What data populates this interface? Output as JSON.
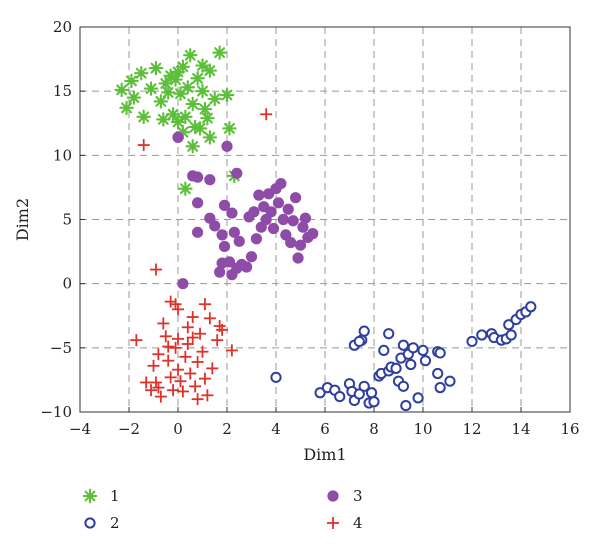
{
  "chart_data": {
    "type": "scatter",
    "xlabel": "Dim1",
    "ylabel": "Dim2",
    "xlim": [
      -4,
      16
    ],
    "ylim": [
      -10,
      20
    ],
    "xticks": [
      -4,
      -2,
      0,
      2,
      4,
      6,
      8,
      10,
      12,
      14,
      16
    ],
    "yticks": [
      -10,
      -5,
      0,
      5,
      10,
      15,
      20
    ],
    "grid": true,
    "legend_placement": "below",
    "series": [
      {
        "name": "1",
        "marker": "asterisk",
        "color": "#5cbf3a",
        "points": [
          [
            -2.3,
            15.1
          ],
          [
            -2.1,
            13.7
          ],
          [
            -1.8,
            14.5
          ],
          [
            -1.9,
            15.8
          ],
          [
            -1.5,
            16.4
          ],
          [
            -1.1,
            15.2
          ],
          [
            -0.9,
            16.8
          ],
          [
            -1.4,
            13.0
          ],
          [
            -0.7,
            14.2
          ],
          [
            -0.5,
            15.6
          ],
          [
            -0.3,
            16.2
          ],
          [
            -0.2,
            13.2
          ],
          [
            0.0,
            12.6
          ],
          [
            0.1,
            14.8
          ],
          [
            0.2,
            16.9
          ],
          [
            0.4,
            15.3
          ],
          [
            0.5,
            17.8
          ],
          [
            0.6,
            14.0
          ],
          [
            0.8,
            16.0
          ],
          [
            1.0,
            15.0
          ],
          [
            1.1,
            13.6
          ],
          [
            1.2,
            12.9
          ],
          [
            1.3,
            16.6
          ],
          [
            1.5,
            14.4
          ],
          [
            1.7,
            18.0
          ],
          [
            0.3,
            13.0
          ],
          [
            -0.1,
            15.9
          ],
          [
            0.9,
            12.1
          ],
          [
            1.0,
            17.0
          ],
          [
            0.2,
            11.8
          ],
          [
            0.7,
            12.2
          ],
          [
            2.0,
            14.7
          ],
          [
            2.1,
            12.1
          ],
          [
            0.6,
            10.7
          ],
          [
            1.3,
            11.4
          ],
          [
            -0.6,
            12.8
          ],
          [
            0.3,
            7.4
          ],
          [
            2.3,
            8.4
          ],
          [
            -0.4,
            14.9
          ],
          [
            0.0,
            16.5
          ]
        ]
      },
      {
        "name": "2",
        "marker": "open-circle",
        "color": "#2f3f9e",
        "points": [
          [
            4.0,
            -7.3
          ],
          [
            5.8,
            -8.5
          ],
          [
            6.1,
            -8.1
          ],
          [
            6.4,
            -8.3
          ],
          [
            6.6,
            -8.8
          ],
          [
            7.0,
            -7.8
          ],
          [
            7.1,
            -8.4
          ],
          [
            7.2,
            -9.1
          ],
          [
            7.4,
            -8.6
          ],
          [
            7.8,
            -9.3
          ],
          [
            8.0,
            -9.2
          ],
          [
            7.6,
            -8.0
          ],
          [
            7.9,
            -8.5
          ],
          [
            8.2,
            -7.2
          ],
          [
            8.3,
            -7.0
          ],
          [
            8.6,
            -6.8
          ],
          [
            8.7,
            -6.5
          ],
          [
            8.9,
            -6.6
          ],
          [
            9.0,
            -7.6
          ],
          [
            9.1,
            -5.8
          ],
          [
            9.2,
            -8.0
          ],
          [
            9.3,
            -9.5
          ],
          [
            9.4,
            -5.5
          ],
          [
            9.5,
            -6.3
          ],
          [
            9.6,
            -5.0
          ],
          [
            9.2,
            -4.8
          ],
          [
            8.4,
            -5.2
          ],
          [
            8.6,
            -3.9
          ],
          [
            7.5,
            -4.4
          ],
          [
            7.6,
            -3.7
          ],
          [
            7.2,
            -4.8
          ],
          [
            7.4,
            -4.5
          ],
          [
            10.0,
            -5.2
          ],
          [
            10.1,
            -6.0
          ],
          [
            9.8,
            -8.9
          ],
          [
            10.6,
            -5.3
          ],
          [
            10.7,
            -5.4
          ],
          [
            10.6,
            -7.0
          ],
          [
            10.7,
            -8.1
          ],
          [
            11.1,
            -7.6
          ],
          [
            12.0,
            -4.5
          ],
          [
            12.4,
            -4.0
          ],
          [
            12.8,
            -3.9
          ],
          [
            12.9,
            -4.2
          ],
          [
            13.2,
            -4.4
          ],
          [
            13.4,
            -4.3
          ],
          [
            13.6,
            -4.0
          ],
          [
            13.5,
            -3.2
          ],
          [
            13.8,
            -2.8
          ],
          [
            14.0,
            -2.4
          ],
          [
            14.2,
            -2.2
          ],
          [
            14.4,
            -1.8
          ]
        ]
      },
      {
        "name": "3",
        "marker": "filled-circle",
        "color": "#8e4ca8",
        "points": [
          [
            0.0,
            11.4
          ],
          [
            2.0,
            10.7
          ],
          [
            0.6,
            8.4
          ],
          [
            0.8,
            8.3
          ],
          [
            1.3,
            8.1
          ],
          [
            2.4,
            8.6
          ],
          [
            0.8,
            6.3
          ],
          [
            1.3,
            5.1
          ],
          [
            1.9,
            6.1
          ],
          [
            2.2,
            5.5
          ],
          [
            1.5,
            4.5
          ],
          [
            0.8,
            4.0
          ],
          [
            1.8,
            3.8
          ],
          [
            2.3,
            4.0
          ],
          [
            2.5,
            3.3
          ],
          [
            1.8,
            1.6
          ],
          [
            1.9,
            2.9
          ],
          [
            2.1,
            1.7
          ],
          [
            2.4,
            1.2
          ],
          [
            2.6,
            1.5
          ],
          [
            1.7,
            0.9
          ],
          [
            2.2,
            0.7
          ],
          [
            2.8,
            1.3
          ],
          [
            3.0,
            2.1
          ],
          [
            3.3,
            6.9
          ],
          [
            3.5,
            6.0
          ],
          [
            3.6,
            5.0
          ],
          [
            3.8,
            5.6
          ],
          [
            3.9,
            4.3
          ],
          [
            4.0,
            7.4
          ],
          [
            4.1,
            6.3
          ],
          [
            4.3,
            5.0
          ],
          [
            4.4,
            3.8
          ],
          [
            4.6,
            3.2
          ],
          [
            4.7,
            4.9
          ],
          [
            4.8,
            6.7
          ],
          [
            4.9,
            2.0
          ],
          [
            5.1,
            4.4
          ],
          [
            5.2,
            5.1
          ],
          [
            5.3,
            3.6
          ],
          [
            5.5,
            3.9
          ],
          [
            4.2,
            7.8
          ],
          [
            3.1,
            5.6
          ],
          [
            3.4,
            4.4
          ],
          [
            2.9,
            5.2
          ],
          [
            0.2,
            0.0
          ],
          [
            3.7,
            7.0
          ],
          [
            3.2,
            3.5
          ],
          [
            4.5,
            5.8
          ],
          [
            5.0,
            3.0
          ]
        ]
      },
      {
        "name": "4",
        "marker": "plus",
        "color": "#e0302a",
        "points": [
          [
            3.6,
            13.2
          ],
          [
            -1.4,
            10.8
          ],
          [
            -0.9,
            1.1
          ],
          [
            -1.7,
            -4.4
          ],
          [
            -1.3,
            -7.7
          ],
          [
            -1.0,
            -6.4
          ],
          [
            -0.9,
            -7.7
          ],
          [
            -0.8,
            -8.1
          ],
          [
            -0.7,
            -8.8
          ],
          [
            -0.8,
            -5.5
          ],
          [
            -0.6,
            -3.1
          ],
          [
            -0.5,
            -4.1
          ],
          [
            -0.4,
            -6.0
          ],
          [
            -0.3,
            -7.3
          ],
          [
            -0.2,
            -8.3
          ],
          [
            -0.1,
            -5.0
          ],
          [
            0.0,
            -4.3
          ],
          [
            0.0,
            -6.7
          ],
          [
            0.1,
            -7.6
          ],
          [
            0.2,
            -8.4
          ],
          [
            0.3,
            -5.7
          ],
          [
            0.4,
            -4.7
          ],
          [
            0.4,
            -3.4
          ],
          [
            0.5,
            -7.0
          ],
          [
            0.6,
            -2.6
          ],
          [
            0.7,
            -8.0
          ],
          [
            0.8,
            -6.1
          ],
          [
            0.9,
            -3.9
          ],
          [
            1.0,
            -5.3
          ],
          [
            1.1,
            -7.4
          ],
          [
            1.2,
            -8.7
          ],
          [
            1.3,
            -2.7
          ],
          [
            1.4,
            -6.6
          ],
          [
            1.6,
            -4.4
          ],
          [
            1.7,
            -3.3
          ],
          [
            1.8,
            -3.6
          ],
          [
            2.2,
            -5.2
          ],
          [
            -0.3,
            -1.4
          ],
          [
            -0.1,
            -1.6
          ],
          [
            0.0,
            -2.0
          ],
          [
            0.6,
            -4.2
          ],
          [
            1.1,
            -1.6
          ],
          [
            -0.4,
            -4.9
          ],
          [
            0.8,
            -9.0
          ],
          [
            -1.1,
            -8.3
          ]
        ]
      }
    ]
  }
}
